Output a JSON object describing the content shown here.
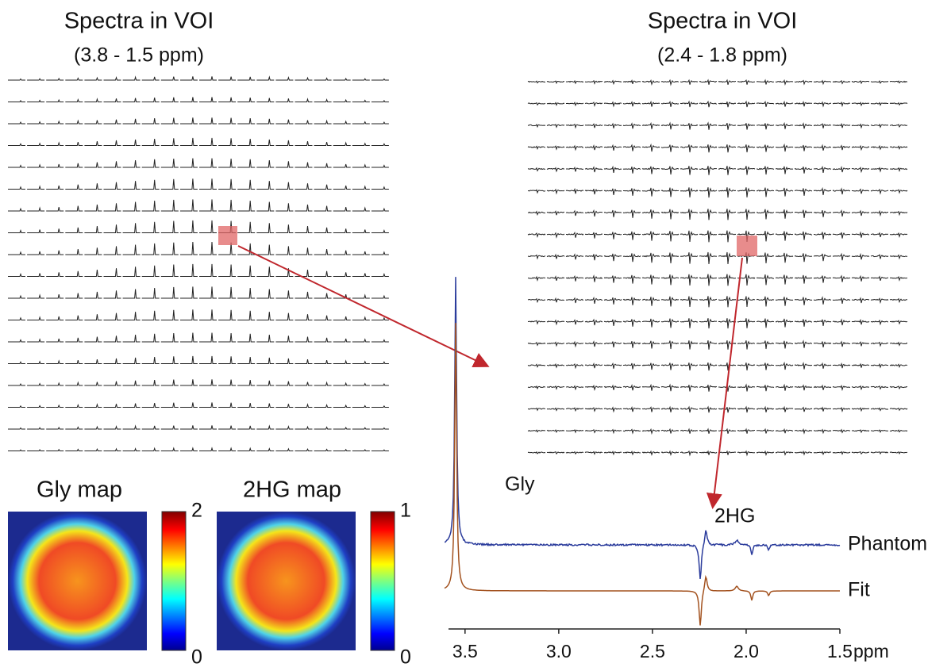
{
  "panels": [
    {
      "title": "Spectra in VOI",
      "range": "(3.8 - 1.5 ppm)"
    },
    {
      "title": "Spectra in VOI",
      "range": "(2.4 - 1.8 ppm)"
    }
  ],
  "maps": [
    {
      "title": "Gly map",
      "max_label": "2",
      "min_label": "0"
    },
    {
      "title": "2HG map",
      "max_label": "1",
      "min_label": "0"
    }
  ],
  "spectrum": {
    "xlim": [
      3.8,
      1.5
    ],
    "xticks": [
      3.5,
      {
        "value": 3.0,
        "label": "3.0"
      },
      2.5,
      {
        "value": 2.0,
        "label": "2.0"
      },
      1.5
    ],
    "unit": "ppm",
    "peaks": [
      "Gly",
      "2HG"
    ],
    "traces": [
      {
        "name": "Phantom",
        "color": "#2b3c9c"
      },
      {
        "name": "Fit",
        "color": "#a3521f"
      }
    ]
  }
}
